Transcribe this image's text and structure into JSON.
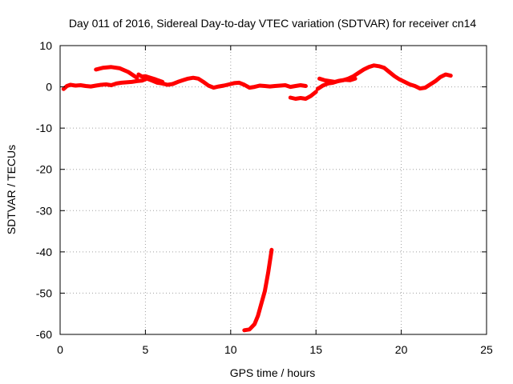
{
  "chart_data": {
    "type": "line",
    "title": "Day 011 of 2016, Sidereal Day-to-day VTEC variation (SDTVAR) for receiver cn14",
    "xlabel": "GPS time / hours",
    "ylabel": "SDTVAR / TECUs",
    "xlim": [
      0,
      25
    ],
    "ylim": [
      -60,
      10
    ],
    "x_ticks": [
      0,
      5,
      10,
      15,
      20,
      25
    ],
    "y_ticks": [
      10,
      0,
      -10,
      -20,
      -30,
      -40,
      -50,
      -60
    ],
    "grid": true,
    "legend": "none",
    "color": "#ff0000",
    "series": [
      {
        "name": "trace-1",
        "x": [
          0.2,
          0.4,
          0.6,
          0.9,
          1.2,
          1.5,
          1.8,
          2.1,
          2.4,
          2.7,
          3.0,
          3.3,
          3.6,
          3.9,
          4.2,
          4.5,
          4.8,
          5.1,
          5.4,
          5.7,
          6.0,
          6.3,
          6.6,
          6.9,
          7.2,
          7.5,
          7.8,
          8.1,
          8.4,
          8.7,
          9.0,
          9.3,
          9.6,
          9.9,
          10.2,
          10.5,
          10.8,
          11.1,
          11.4,
          11.7,
          12.0,
          12.3,
          12.6,
          12.9,
          13.2,
          13.5,
          13.8,
          14.1,
          14.4
        ],
        "y": [
          -0.5,
          0.2,
          0.5,
          0.3,
          0.4,
          0.2,
          0.1,
          0.3,
          0.5,
          0.6,
          0.4,
          0.8,
          1.0,
          1.1,
          1.2,
          1.4,
          1.5,
          2.0,
          1.5,
          1.0,
          0.8,
          0.5,
          0.7,
          1.2,
          1.6,
          2.0,
          2.2,
          2.0,
          1.2,
          0.3,
          -0.2,
          0.1,
          0.3,
          0.6,
          0.9,
          1.0,
          0.5,
          -0.2,
          0.0,
          0.3,
          0.2,
          0.1,
          0.2,
          0.3,
          0.4,
          0.0,
          0.2,
          0.4,
          0.2
        ]
      },
      {
        "name": "trace-2",
        "x": [
          2.1,
          2.5,
          3.0,
          3.5,
          4.0,
          4.5
        ],
        "y": [
          4.2,
          4.6,
          4.8,
          4.5,
          3.6,
          2.2
        ]
      },
      {
        "name": "trace-3",
        "x": [
          4.6,
          4.8,
          5.0,
          5.3,
          5.6,
          6.0
        ],
        "y": [
          3.0,
          2.5,
          2.6,
          2.2,
          1.8,
          1.2
        ]
      },
      {
        "name": "trace-4",
        "x": [
          13.5,
          13.8,
          14.1,
          14.4,
          14.7,
          15.0
        ],
        "y": [
          -2.6,
          -2.9,
          -2.7,
          -2.9,
          -2.2,
          -1.2
        ]
      },
      {
        "name": "trace-5",
        "x": [
          15.1,
          15.4,
          15.7,
          16.0,
          16.3,
          16.6,
          16.9,
          17.2,
          17.5,
          17.8,
          18.1,
          18.4,
          18.7,
          19.0,
          19.3,
          19.6,
          19.9,
          20.2,
          20.5,
          20.8,
          21.1,
          21.4,
          21.7,
          22.0,
          22.3,
          22.6,
          22.9
        ],
        "y": [
          -0.5,
          0.3,
          0.8,
          1.0,
          1.4,
          1.6,
          2.0,
          2.6,
          3.4,
          4.2,
          4.8,
          5.2,
          5.0,
          4.6,
          3.6,
          2.6,
          1.8,
          1.2,
          0.6,
          0.2,
          -0.4,
          -0.2,
          0.6,
          1.4,
          2.4,
          3.0,
          2.7
        ]
      },
      {
        "name": "trace-6",
        "x": [
          15.2,
          15.5,
          15.8,
          16.1,
          16.4,
          16.7,
          17.0,
          17.3
        ],
        "y": [
          2.0,
          1.6,
          1.4,
          1.2,
          1.5,
          1.7,
          1.6,
          2.0
        ]
      },
      {
        "name": "trace-7",
        "x": [
          10.8,
          11.1,
          11.4,
          11.6,
          11.8,
          12.0,
          12.2,
          12.4
        ],
        "y": [
          -59.0,
          -58.8,
          -57.5,
          -55.5,
          -52.5,
          -49.5,
          -45.0,
          -39.5
        ]
      }
    ]
  }
}
